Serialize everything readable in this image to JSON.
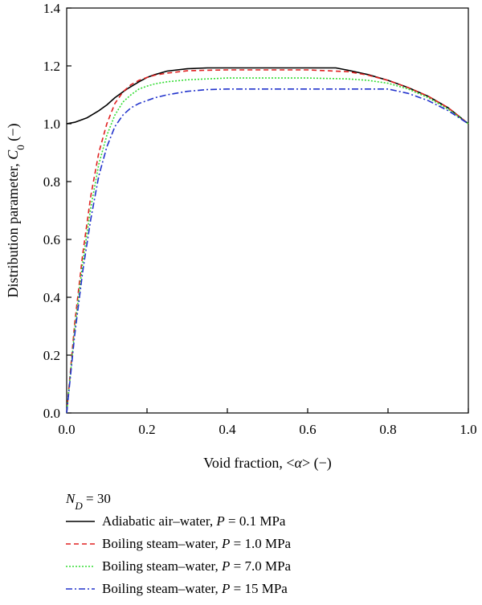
{
  "chart_data": {
    "type": "line",
    "xlabel": {
      "prefix": "Void fraction, <",
      "symbol": "α",
      "suffix": "> (−)"
    },
    "ylabel": {
      "prefix": "Distribution parameter, ",
      "symbol": "C",
      "subscript": "0",
      "suffix": " (−)"
    },
    "xlim": [
      0.0,
      1.0
    ],
    "ylim": [
      0.0,
      1.4
    ],
    "xticks": [
      "0.0",
      "0.2",
      "0.4",
      "0.6",
      "0.8",
      "1.0"
    ],
    "yticks": [
      "0.0",
      "0.2",
      "0.4",
      "0.6",
      "0.8",
      "1.0",
      "1.2",
      "1.4"
    ],
    "legend": {
      "header": {
        "symbol": "N",
        "subscript": "D",
        "value": " = 30"
      },
      "placement": "below"
    },
    "series": [
      {
        "name": "Adiabatic air–water, P = 0.1 MPa",
        "label_prefix": "Adiabatic air–water, ",
        "label_value": " = 0.1 MPa",
        "color": "#000000",
        "dash": "",
        "x": [
          0.0,
          0.02,
          0.05,
          0.08,
          0.1,
          0.12,
          0.15,
          0.18,
          0.2,
          0.22,
          0.25,
          0.3,
          0.35,
          0.4,
          0.5,
          0.6,
          0.67,
          0.7,
          0.75,
          0.8,
          0.85,
          0.9,
          0.95,
          1.0
        ],
        "y": [
          1.0,
          1.005,
          1.02,
          1.045,
          1.065,
          1.09,
          1.12,
          1.145,
          1.16,
          1.17,
          1.182,
          1.19,
          1.193,
          1.193,
          1.193,
          1.193,
          1.193,
          1.185,
          1.17,
          1.15,
          1.125,
          1.095,
          1.055,
          1.0
        ]
      },
      {
        "name": "Boiling steam–water, P = 1.0 MPa",
        "label_prefix": "Boiling steam–water, ",
        "label_value": " = 1.0 MPa",
        "color": "#e02020",
        "dash": "6,4",
        "x": [
          0.0,
          0.02,
          0.04,
          0.06,
          0.08,
          0.1,
          0.12,
          0.14,
          0.16,
          0.18,
          0.2,
          0.22,
          0.25,
          0.3,
          0.35,
          0.4,
          0.5,
          0.6,
          0.7,
          0.75,
          0.8,
          0.85,
          0.9,
          0.95,
          1.0
        ],
        "y": [
          0.0,
          0.31,
          0.55,
          0.75,
          0.9,
          1.0,
          1.07,
          1.11,
          1.135,
          1.15,
          1.16,
          1.168,
          1.175,
          1.183,
          1.185,
          1.186,
          1.186,
          1.186,
          1.18,
          1.168,
          1.15,
          1.125,
          1.095,
          1.055,
          1.0
        ]
      },
      {
        "name": "Boiling steam–water, P = 7.0 MPa",
        "label_prefix": "Boiling steam–water, ",
        "label_value": " = 7.0 MPa",
        "color": "#33dd33",
        "dash": "2,2",
        "x": [
          0.0,
          0.02,
          0.04,
          0.06,
          0.08,
          0.1,
          0.12,
          0.14,
          0.16,
          0.18,
          0.2,
          0.22,
          0.25,
          0.3,
          0.35,
          0.4,
          0.5,
          0.6,
          0.7,
          0.75,
          0.8,
          0.85,
          0.9,
          0.95,
          1.0
        ],
        "y": [
          0.0,
          0.29,
          0.52,
          0.71,
          0.86,
          0.96,
          1.03,
          1.075,
          1.1,
          1.12,
          1.13,
          1.138,
          1.145,
          1.152,
          1.155,
          1.158,
          1.158,
          1.158,
          1.155,
          1.15,
          1.14,
          1.12,
          1.09,
          1.05,
          1.0
        ]
      },
      {
        "name": "Boiling steam–water, P = 15 MPa",
        "label_prefix": "Boiling steam–water, ",
        "label_value": " = 15 MPa",
        "color": "#2233cc",
        "dash": "8,3,2,3",
        "x": [
          0.0,
          0.02,
          0.04,
          0.06,
          0.08,
          0.1,
          0.12,
          0.14,
          0.16,
          0.18,
          0.2,
          0.22,
          0.25,
          0.3,
          0.35,
          0.4,
          0.5,
          0.6,
          0.7,
          0.75,
          0.8,
          0.85,
          0.9,
          0.95,
          1.0
        ],
        "y": [
          0.0,
          0.27,
          0.49,
          0.67,
          0.82,
          0.92,
          0.99,
          1.03,
          1.055,
          1.07,
          1.08,
          1.09,
          1.1,
          1.112,
          1.118,
          1.12,
          1.12,
          1.12,
          1.12,
          1.12,
          1.12,
          1.105,
          1.08,
          1.045,
          1.0
        ]
      }
    ],
    "grid": false,
    "colors": {
      "axis": "#000000",
      "background": "#ffffff"
    }
  }
}
